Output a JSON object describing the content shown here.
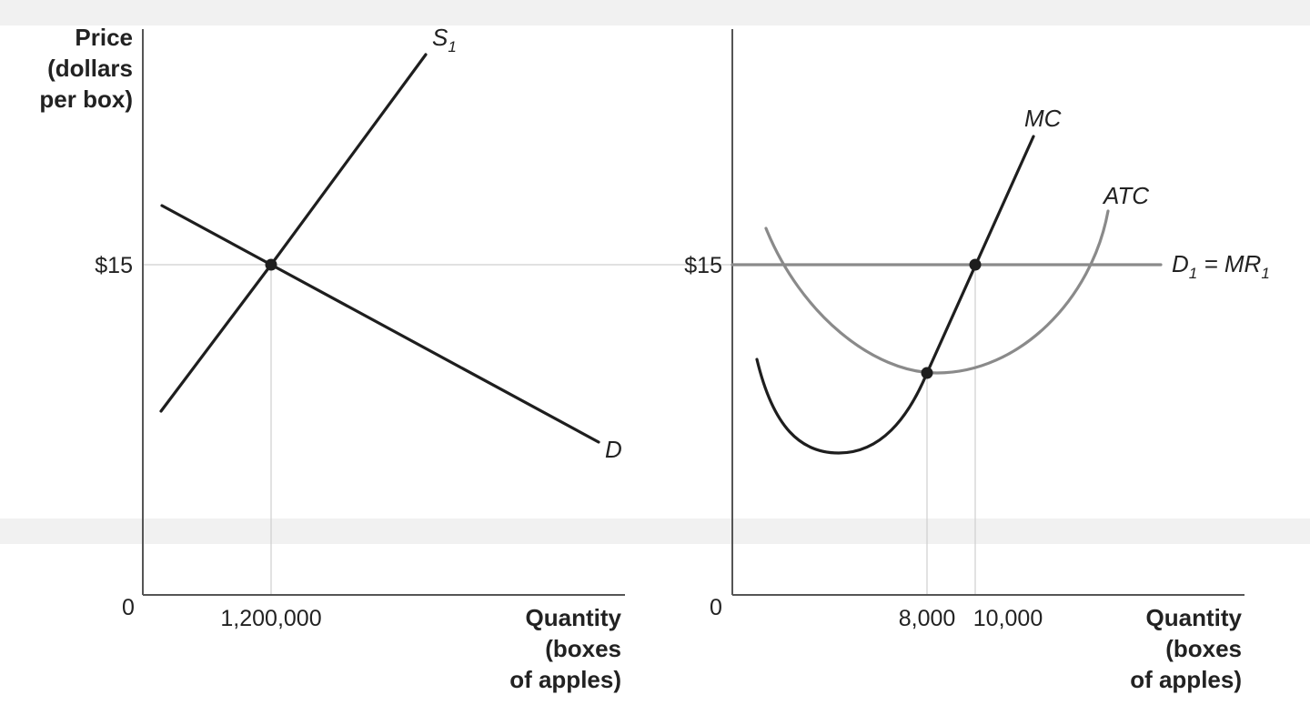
{
  "colors": {
    "dark": "#1e1e1e",
    "gray": "#8a8a8a",
    "guide": "#cfcfcf",
    "axis": "#555555",
    "band": "#f1f1f1"
  },
  "chart_data": [
    {
      "panel": "market",
      "type": "line",
      "y_axis_label": [
        "Price",
        "(dollars",
        "per box)"
      ],
      "x_axis_label": [
        "Quantity",
        "(boxes",
        "of apples)"
      ],
      "origin_label": "0",
      "y_ticks": [
        "$15"
      ],
      "x_ticks": [
        "1,200,000"
      ],
      "series": [
        {
          "name": "S",
          "subscript": "1",
          "color": "#1e1e1e",
          "points": [
            [
              -0.9,
              0.36
            ],
            [
              1.2,
              15
            ],
            [
              2.68,
              25.4
            ]
          ]
        },
        {
          "name": "D",
          "color": "#1e1e1e",
          "points": [
            [
              0.12,
              17.8
            ],
            [
              1.2,
              15
            ],
            [
              3.75,
              8.3
            ]
          ]
        }
      ],
      "equilibrium": {
        "quantity": "1,200,000",
        "price": "$15"
      }
    },
    {
      "panel": "firm",
      "type": "line",
      "x_axis_label": [
        "Quantity",
        "(boxes",
        "of apples)"
      ],
      "origin_label": "0",
      "y_ticks": [
        "$15"
      ],
      "x_ticks": [
        "8,000",
        "10,000"
      ],
      "series": [
        {
          "name": "MC",
          "color": "#1e1e1e",
          "points": [
            [
              1000,
              10.5
            ],
            [
              2000,
              7.9
            ],
            [
              3000,
              6.4
            ],
            [
              4000,
              6.3
            ],
            [
              5000,
              6.7
            ],
            [
              6000,
              7.6
            ],
            [
              7000,
              8.9
            ],
            [
              8000,
              10.2
            ],
            [
              9000,
              12.6
            ],
            [
              10000,
              15
            ],
            [
              11000,
              17.6
            ],
            [
              12000,
              20.8
            ]
          ]
        },
        {
          "name": "ATC",
          "color": "#8a8a8a",
          "points": [
            [
              1000,
              17.0
            ],
            [
              2000,
              14.4
            ],
            [
              3000,
              12.7
            ],
            [
              4000,
              11.5
            ],
            [
              5000,
              10.8
            ],
            [
              6000,
              10.45
            ],
            [
              7000,
              10.25
            ],
            [
              8000,
              10.2
            ],
            [
              9000,
              10.25
            ],
            [
              10000,
              10.6
            ],
            [
              11000,
              11.4
            ],
            [
              12000,
              12.8
            ],
            [
              13000,
              14.8
            ],
            [
              14000,
              17.5
            ]
          ]
        },
        {
          "name": "D",
          "subscript": "1",
          "suffix": " = MR",
          "suffix_subscript": "1",
          "color": "#8a8a8a",
          "points": [
            [
              0,
              15
            ],
            [
              17500,
              15
            ]
          ]
        }
      ],
      "points_marked": [
        {
          "quantity": "8,000",
          "curves": [
            "MC",
            "ATC"
          ]
        },
        {
          "quantity": "10,000",
          "price": "$15",
          "curves": [
            "MC",
            "D1 = MR1"
          ]
        }
      ]
    }
  ]
}
